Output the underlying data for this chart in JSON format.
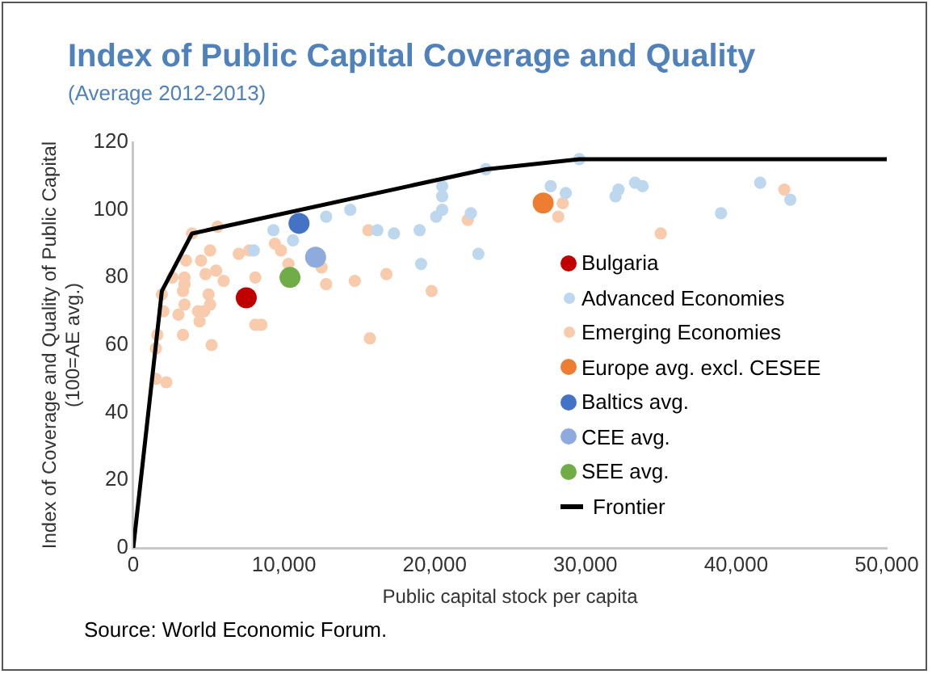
{
  "chart_data": {
    "type": "scatter",
    "title": "Index of Public Capital Coverage and Quality",
    "subtitle": "(Average 2012-2013)",
    "xlabel": "Public capital stock per capita",
    "ylabel": "Index of Coverage and Quality of Public Capital\n(100=AE avg.)",
    "annotations": [
      "Source: World Economic Forum."
    ],
    "xlim": [
      0,
      50000
    ],
    "xticks": [
      0,
      {
        "value": 10000,
        "label": "10,000"
      },
      {
        "value": 20000,
        "label": "20,000"
      },
      {
        "value": 30000,
        "label": "30,000"
      },
      {
        "value": 40000,
        "label": "40,000"
      },
      {
        "value": 50000,
        "label": "50,000"
      }
    ],
    "ylim": [
      0,
      120
    ],
    "yticks": [
      0,
      20,
      40,
      60,
      80,
      100,
      120
    ],
    "grid": false,
    "legend": "right",
    "marker": "circle",
    "series": [
      {
        "name": "Bulgaria",
        "color": "#c00000",
        "x": [
          7500
        ],
        "values": [
          74
        ]
      },
      {
        "name": "Advanced Economies",
        "color": "#bdd7ee",
        "x": [
          9300,
          10600,
          12800,
          14400,
          8000,
          16200,
          17300,
          23400,
          29600,
          20500,
          20500,
          20100,
          20500,
          22400,
          19000,
          19100,
          22900,
          27700,
          28700,
          32000,
          32200,
          33300,
          33800,
          39000,
          41600,
          43600
        ],
        "values": [
          94,
          91,
          98,
          100,
          88,
          94,
          93,
          112,
          115,
          107,
          104,
          98,
          100,
          99,
          94,
          84,
          87,
          107,
          105,
          104,
          106,
          108,
          107,
          99,
          108,
          103
        ]
      },
      {
        "name": "Emerging Economies",
        "color": "#f8cbad",
        "x": [
          3900,
          5600,
          1900,
          2600,
          3500,
          4500,
          5100,
          3400,
          3400,
          3300,
          3400,
          4800,
          5500,
          6000,
          5000,
          5100,
          4300,
          4700,
          4400,
          3000,
          2000,
          1600,
          1500,
          3300,
          5200,
          1500,
          2200,
          7000,
          7700,
          9400,
          9800,
          8100,
          8100,
          8500,
          10100,
          12500,
          12800,
          14700,
          16800,
          15700,
          15600,
          10300,
          19800,
          22200,
          28500,
          28200,
          35000,
          43200
        ],
        "values": [
          93,
          95,
          75,
          80,
          85,
          85,
          88,
          80,
          78,
          76,
          72,
          81,
          82,
          79,
          75,
          72,
          70,
          70,
          67,
          69,
          70,
          63,
          59,
          63,
          60,
          50,
          49,
          87,
          88,
          90,
          88,
          80,
          66,
          66,
          null,
          83,
          78,
          79,
          81,
          62,
          94,
          84,
          76,
          97,
          102,
          98,
          93,
          106
        ]
      },
      {
        "name": "Europe avg. excl. CESEE",
        "color": "#ed7d31",
        "x": [
          27200
        ],
        "values": [
          102
        ]
      },
      {
        "name": "Baltics avg.",
        "color": "#4472c4",
        "x": [
          11000
        ],
        "values": [
          96
        ]
      },
      {
        "name": "CEE avg.",
        "color": "#8faadc",
        "x": [
          12100
        ],
        "values": [
          86
        ]
      },
      {
        "name": "SEE avg.",
        "color": "#70ad47",
        "x": [
          10400
        ],
        "values": [
          80
        ]
      },
      {
        "name": "Frontier",
        "type": "line",
        "marker": "none",
        "color": "#000000",
        "x": [
          0,
          1900,
          3900,
          23400,
          29600,
          50000
        ],
        "values": [
          0,
          76,
          93,
          112,
          115,
          115
        ]
      }
    ]
  }
}
